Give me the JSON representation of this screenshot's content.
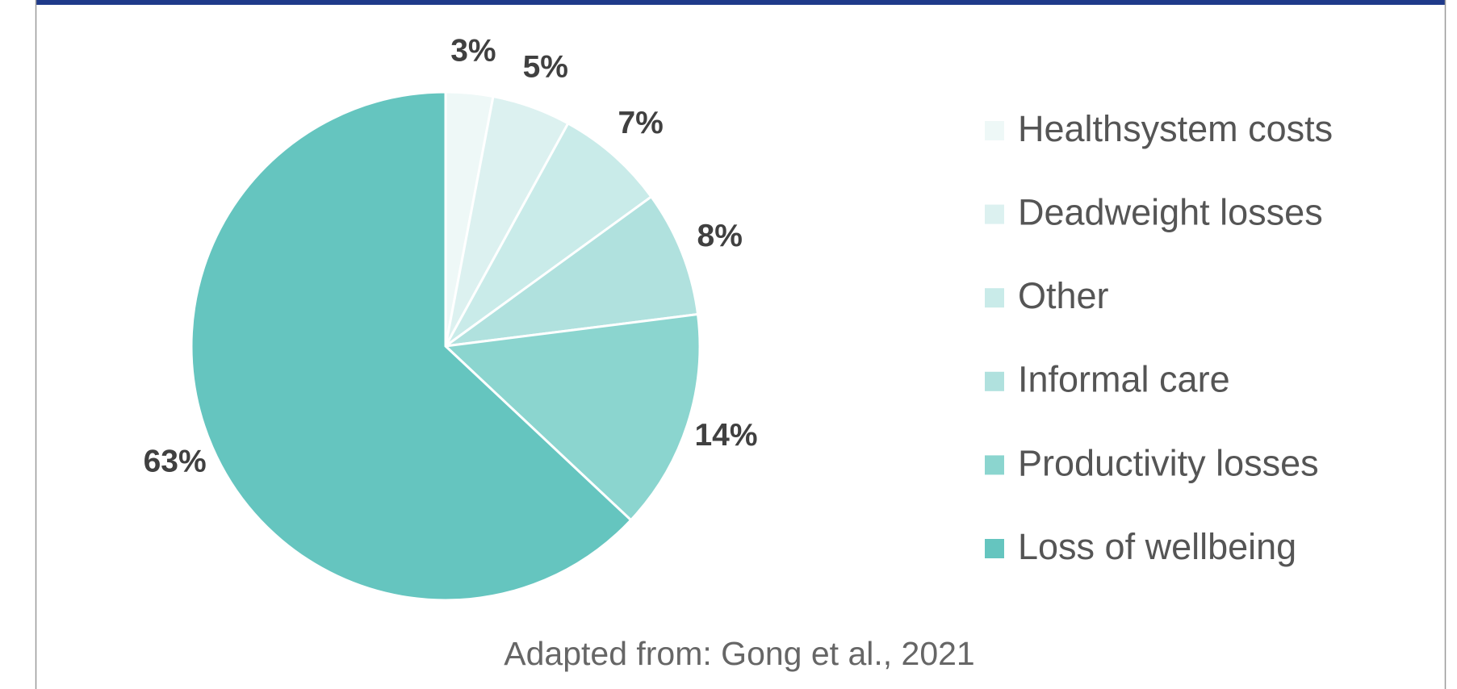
{
  "chart_data": {
    "type": "pie",
    "categories": [
      "Healthsystem costs",
      "Deadweight losses",
      "Other",
      "Informal care",
      "Productivity losses",
      "Loss of wellbeing"
    ],
    "values": [
      3,
      5,
      7,
      8,
      14,
      63
    ],
    "value_labels": [
      "3%",
      "5%",
      "7%",
      "8%",
      "14%",
      "63%"
    ],
    "colors": [
      "#eef8f7",
      "#dcf1f0",
      "#c9ebe9",
      "#b0e1de",
      "#8bd5cf",
      "#65c5bf"
    ],
    "legend": "right",
    "source": "Adapted from: Gong et al., 2021"
  }
}
